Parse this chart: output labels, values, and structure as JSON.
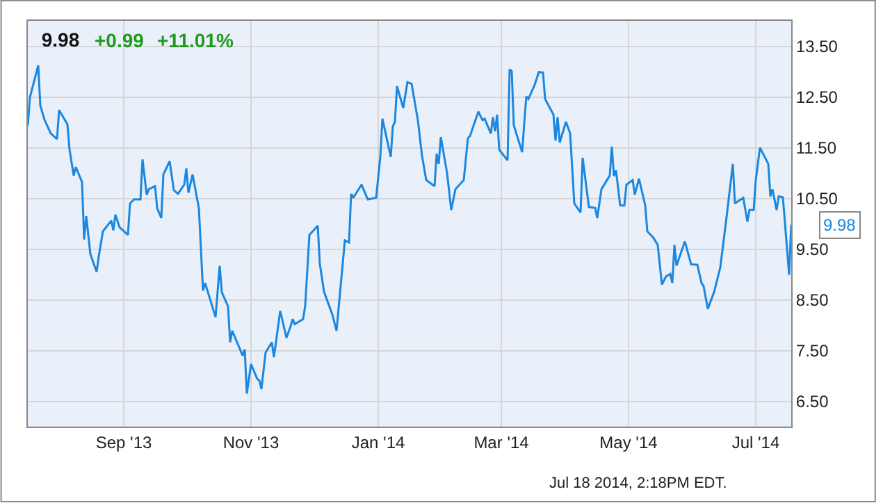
{
  "chart_data": {
    "type": "line",
    "title": "9.98",
    "annotations": [
      "+0.99",
      "+11.01%",
      "Jul 18 2014, 2:18PM EDT."
    ],
    "x": [
      "2013-07-17",
      "2013-07-18",
      "2013-07-22",
      "2013-07-23",
      "2013-07-25",
      "2013-07-28",
      "2013-07-31",
      "2013-08-01",
      "2013-08-05",
      "2013-08-06",
      "2013-08-08",
      "2013-08-09",
      "2013-08-12",
      "2013-08-13",
      "2013-08-14",
      "2013-08-16",
      "2013-08-19",
      "2013-08-20",
      "2013-08-22",
      "2013-08-26",
      "2013-08-27",
      "2013-08-28",
      "2013-08-30",
      "2013-09-03",
      "2013-09-04",
      "2013-09-06",
      "2013-09-09",
      "2013-09-10",
      "2013-09-12",
      "2013-09-13",
      "2013-09-16",
      "2013-09-17",
      "2013-09-19",
      "2013-09-20",
      "2013-09-23",
      "2013-09-25",
      "2013-09-27",
      "2013-09-30",
      "2013-10-01",
      "2013-10-02",
      "2013-10-04",
      "2013-10-07",
      "2013-10-09",
      "2013-10-10",
      "2013-10-15",
      "2013-10-17",
      "2013-10-18",
      "2013-10-21",
      "2013-10-22",
      "2013-10-23",
      "2013-10-28",
      "2013-10-29",
      "2013-10-30",
      "2013-11-01",
      "2013-11-04",
      "2013-11-05",
      "2013-11-06",
      "2013-11-08",
      "2013-11-11",
      "2013-11-12",
      "2013-11-15",
      "2013-11-18",
      "2013-11-20",
      "2013-11-21",
      "2013-11-22",
      "2013-11-26",
      "2013-11-27",
      "2013-11-29",
      "2013-12-03",
      "2013-12-04",
      "2013-12-06",
      "2013-12-10",
      "2013-12-12",
      "2013-12-16",
      "2013-12-18",
      "2013-12-19",
      "2013-12-20",
      "2013-12-24",
      "2013-12-27",
      "2013-12-31",
      "2014-01-02",
      "2014-01-03",
      "2014-01-07",
      "2014-01-08",
      "2014-01-09",
      "2014-01-10",
      "2014-01-13",
      "2014-01-15",
      "2014-01-17",
      "2014-01-20",
      "2014-01-22",
      "2014-01-24",
      "2014-01-28",
      "2014-01-29",
      "2014-01-30",
      "2014-01-31",
      "2014-02-03",
      "2014-02-05",
      "2014-02-07",
      "2014-02-11",
      "2014-02-13",
      "2014-02-14",
      "2014-02-18",
      "2014-02-20",
      "2014-02-21",
      "2014-02-24",
      "2014-02-25",
      "2014-02-26",
      "2014-02-27",
      "2014-02-28",
      "2014-03-04",
      "2014-03-05",
      "2014-03-06",
      "2014-03-07",
      "2014-03-11",
      "2014-03-12",
      "2014-03-13",
      "2014-03-14",
      "2014-03-17",
      "2014-03-19",
      "2014-03-21",
      "2014-03-22",
      "2014-03-26",
      "2014-03-27",
      "2014-03-28",
      "2014-03-29",
      "2014-04-01",
      "2014-04-03",
      "2014-04-05",
      "2014-04-08",
      "2014-04-09",
      "2014-04-12",
      "2014-04-15",
      "2014-04-16",
      "2014-04-18",
      "2014-04-22",
      "2014-04-23",
      "2014-04-24",
      "2014-04-25",
      "2014-04-27",
      "2014-04-29",
      "2014-04-30",
      "2014-05-03",
      "2014-05-04",
      "2014-05-06",
      "2014-05-09",
      "2014-05-10",
      "2014-05-13",
      "2014-05-15",
      "2014-05-17",
      "2014-05-19",
      "2014-05-21",
      "2014-05-22",
      "2014-05-23",
      "2014-05-24",
      "2014-05-28",
      "2014-05-31",
      "2014-06-03",
      "2014-06-05",
      "2014-06-06",
      "2014-06-08",
      "2014-06-11",
      "2014-06-14",
      "2014-06-17",
      "2014-06-20",
      "2014-06-21",
      "2014-06-25",
      "2014-06-27",
      "2014-06-28",
      "2014-06-30",
      "2014-07-01",
      "2014-07-03",
      "2014-07-07",
      "2014-07-08",
      "2014-07-09",
      "2014-07-11",
      "2014-07-12",
      "2014-07-14",
      "2014-07-17",
      "2014-07-18"
    ],
    "values": [
      11.94,
      12.49,
      13.12,
      12.33,
      12.05,
      11.78,
      11.67,
      12.24,
      11.96,
      11.46,
      10.95,
      11.12,
      10.82,
      9.69,
      10.15,
      9.4,
      9.05,
      9.35,
      9.85,
      10.06,
      9.87,
      10.18,
      9.93,
      9.78,
      10.4,
      10.48,
      10.48,
      11.27,
      10.57,
      10.68,
      10.74,
      10.31,
      10.11,
      10.97,
      11.23,
      10.66,
      10.59,
      10.77,
      11.09,
      10.61,
      10.97,
      10.31,
      8.68,
      8.83,
      8.16,
      9.17,
      8.65,
      8.37,
      7.66,
      7.89,
      7.4,
      7.52,
      6.65,
      7.23,
      6.94,
      6.91,
      6.74,
      7.46,
      7.66,
      7.37,
      8.28,
      7.75,
      7.98,
      8.12,
      8.02,
      8.12,
      8.39,
      9.78,
      9.96,
      9.21,
      8.66,
      8.21,
      7.89,
      9.67,
      9.63,
      10.59,
      10.51,
      10.77,
      10.48,
      10.51,
      11.32,
      12.07,
      11.32,
      11.92,
      12.01,
      12.71,
      12.28,
      12.79,
      12.76,
      12.04,
      11.34,
      10.86,
      10.74,
      11.38,
      11.18,
      11.71,
      11.0,
      10.27,
      10.68,
      10.86,
      11.69,
      11.73,
      12.21,
      12.04,
      12.07,
      11.78,
      12.1,
      11.82,
      12.15,
      11.46,
      11.25,
      13.04,
      13.01,
      11.94,
      11.41,
      11.98,
      12.51,
      12.46,
      12.74,
      12.99,
      12.98,
      12.46,
      12.15,
      11.64,
      12.1,
      11.6,
      12.01,
      11.78,
      10.4,
      10.22,
      11.3,
      10.33,
      10.31,
      10.11,
      10.68,
      10.95,
      11.52,
      10.94,
      11.05,
      10.36,
      10.36,
      10.77,
      10.86,
      10.57,
      10.89,
      10.36,
      9.85,
      9.72,
      9.58,
      8.8,
      8.96,
      9.01,
      8.83,
      9.58,
      9.17,
      9.65,
      9.2,
      9.19,
      8.83,
      8.77,
      8.32,
      8.65,
      9.14,
      10.13,
      11.18,
      10.4,
      10.51,
      10.04,
      10.27,
      10.27,
      10.86,
      11.5,
      11.18,
      10.54,
      10.68,
      10.27,
      10.54,
      10.52,
      8.99,
      9.98
    ],
    "color": "#1a87e0",
    "line_style": "solid",
    "marker": "none",
    "grid": true,
    "xlim": [
      "2013-07-17",
      "2014-07-18"
    ],
    "xticks": [
      {
        "value": "2013-09-01",
        "label": "Sep '13"
      },
      {
        "value": "2013-11-01",
        "label": "Nov '13"
      },
      {
        "value": "2014-01-01",
        "label": "Jan '14"
      },
      {
        "value": "2014-03-01",
        "label": "Mar '14"
      },
      {
        "value": "2014-05-01",
        "label": "May '14"
      },
      {
        "value": "2014-07-01",
        "label": "Jul '14"
      }
    ],
    "ylim": [
      6,
      14
    ],
    "yticks": [
      {
        "value": 6.5,
        "label": "6.50"
      },
      {
        "value": 7.5,
        "label": "7.50"
      },
      {
        "value": 8.5,
        "label": "8.50"
      },
      {
        "value": 9.5,
        "label": "9.50"
      },
      {
        "value": 10.5,
        "label": "10.50"
      },
      {
        "value": 11.5,
        "label": "11.50"
      },
      {
        "value": 12.5,
        "label": "12.50"
      },
      {
        "value": 13.5,
        "label": "13.50"
      }
    ]
  }
}
